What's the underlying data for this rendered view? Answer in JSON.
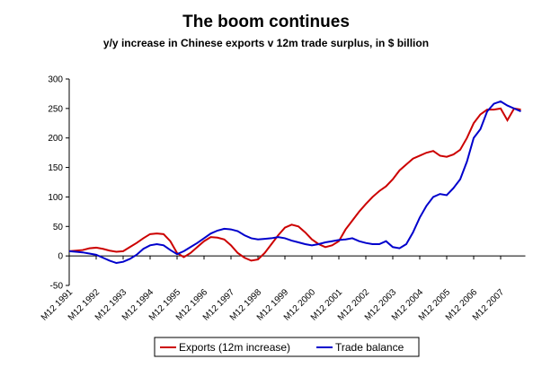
{
  "chart_data": {
    "type": "line",
    "title": "The boom continues",
    "subtitle": "y/y increase in Chinese exports v 12m trade surplus, in $ billion",
    "categories": [
      "M12 1991",
      null,
      null,
      null,
      "M12 1992",
      null,
      null,
      null,
      "M12 1993",
      null,
      null,
      null,
      "M12 1994",
      null,
      null,
      null,
      "M12 1995",
      null,
      null,
      null,
      "M12 1996",
      null,
      null,
      null,
      "M12 1997",
      null,
      null,
      null,
      "M12 1998",
      null,
      null,
      null,
      "M12 1999",
      null,
      null,
      null,
      "M12 2000",
      null,
      null,
      null,
      "M12 2001",
      null,
      null,
      null,
      "M12 2002",
      null,
      null,
      null,
      "M12 2003",
      null,
      null,
      null,
      "M12 2004",
      null,
      null,
      null,
      "M12 2005",
      null,
      null,
      null,
      "M12 2006",
      null,
      null,
      null,
      "M12 2007",
      null,
      null,
      null
    ],
    "series": [
      {
        "name": "Exports (12m increase)",
        "color": "#cc0000",
        "values": [
          8,
          9,
          10,
          13,
          14,
          12,
          9,
          7,
          8,
          15,
          22,
          30,
          37,
          38,
          37,
          25,
          5,
          -2,
          5,
          15,
          25,
          32,
          31,
          28,
          18,
          5,
          -3,
          -8,
          -6,
          5,
          20,
          35,
          48,
          53,
          50,
          40,
          28,
          20,
          15,
          18,
          25,
          45,
          60,
          75,
          88,
          100,
          110,
          118,
          130,
          145,
          155,
          165,
          170,
          175,
          178,
          170,
          168,
          172,
          180,
          200,
          225,
          240,
          248,
          248,
          250,
          230,
          250,
          248
        ]
      },
      {
        "name": "Trade balance",
        "color": "#0000cc",
        "values": [
          8,
          7,
          6,
          4,
          2,
          -3,
          -8,
          -12,
          -10,
          -5,
          2,
          12,
          18,
          20,
          18,
          10,
          3,
          8,
          15,
          22,
          30,
          38,
          43,
          46,
          45,
          42,
          35,
          30,
          28,
          29,
          30,
          32,
          30,
          26,
          23,
          20,
          18,
          20,
          23,
          25,
          27,
          28,
          30,
          25,
          22,
          20,
          20,
          25,
          15,
          13,
          20,
          40,
          65,
          85,
          100,
          105,
          103,
          115,
          130,
          160,
          200,
          215,
          245,
          258,
          262,
          255,
          250,
          245
        ]
      }
    ],
    "ylim": [
      -50,
      300
    ],
    "yticks": [
      -50,
      0,
      50,
      100,
      150,
      200,
      250,
      300
    ],
    "grid": false,
    "legend": "bottom"
  }
}
